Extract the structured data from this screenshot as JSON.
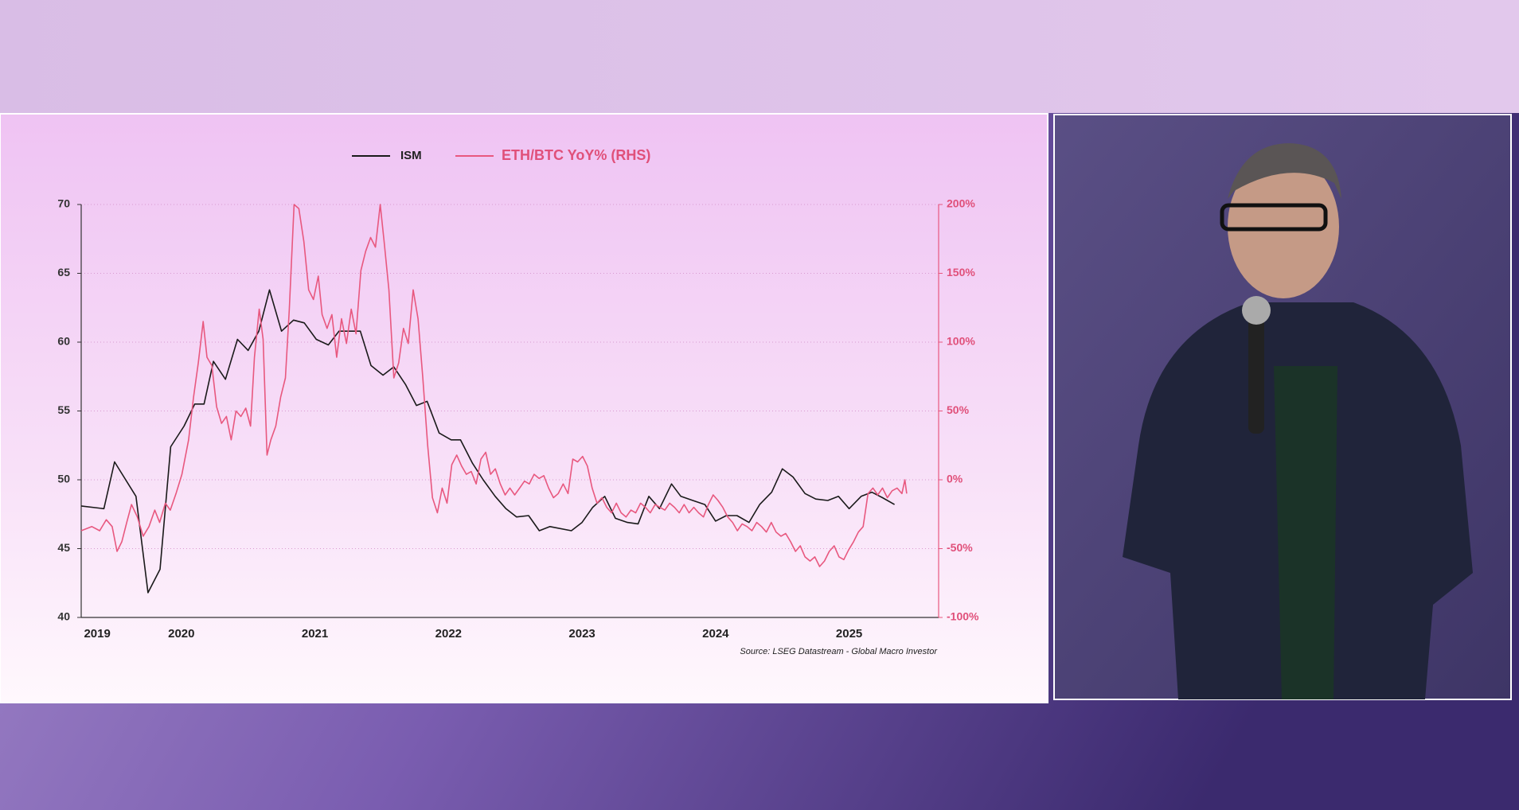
{
  "chart_data": {
    "type": "line",
    "source": "Source: LSEG Datastream - Global Macro Investor",
    "xlim": [
      2019.75,
      2026.17
    ],
    "xticks": [
      {
        "value": 2019.87,
        "label": "2019"
      },
      {
        "value": 2020.5,
        "label": "2020"
      },
      {
        "value": 2021.5,
        "label": "2021"
      },
      {
        "value": 2022.5,
        "label": "2022"
      },
      {
        "value": 2023.5,
        "label": "2023"
      },
      {
        "value": 2024.5,
        "label": "2024"
      },
      {
        "value": 2025.5,
        "label": "2025"
      }
    ],
    "ylim": [
      40,
      70
    ],
    "yticks": [
      40,
      45,
      50,
      55,
      60,
      65,
      70
    ],
    "y2lim": [
      -100,
      200
    ],
    "y2ticks": [
      {
        "value": -100,
        "label": "-100%"
      },
      {
        "value": -50,
        "label": "-50%"
      },
      {
        "value": 0,
        "label": "0%"
      },
      {
        "value": 50,
        "label": "50%"
      },
      {
        "value": 100,
        "label": "100%"
      },
      {
        "value": 150,
        "label": "150%"
      },
      {
        "value": 200,
        "label": "200%"
      }
    ],
    "grid": true,
    "series": [
      {
        "name": "ISM",
        "color": "#1a1a1a",
        "axis": "y",
        "x": [
          2019.75,
          2019.92,
          2020.0,
          2020.16,
          2020.25,
          2020.34,
          2020.42,
          2020.52,
          2020.6,
          2020.67,
          2020.74,
          2020.83,
          2020.92,
          2021.0,
          2021.08,
          2021.16,
          2021.25,
          2021.34,
          2021.42,
          2021.51,
          2021.6,
          2021.68,
          2021.84,
          2021.92,
          2022.01,
          2022.09,
          2022.18,
          2022.26,
          2022.34,
          2022.43,
          2022.52,
          2022.59,
          2022.68,
          2022.76,
          2022.85,
          2022.93,
          2023.01,
          2023.1,
          2023.18,
          2023.26,
          2023.42,
          2023.5,
          2023.58,
          2023.67,
          2023.75,
          2023.84,
          2023.92,
          2024.0,
          2024.08,
          2024.17,
          2024.24,
          2024.33,
          2024.42,
          2024.5,
          2024.58,
          2024.66,
          2024.75,
          2024.83,
          2024.92,
          2025.0,
          2025.08,
          2025.17,
          2025.25,
          2025.34,
          2025.42,
          2025.5,
          2025.59,
          2025.67,
          2025.75,
          2025.84
        ],
        "values": [
          48.1,
          47.9,
          51.3,
          48.8,
          41.8,
          43.5,
          52.4,
          53.9,
          55.5,
          55.5,
          58.6,
          57.3,
          60.2,
          59.4,
          60.8,
          63.8,
          60.8,
          61.6,
          61.4,
          60.2,
          59.8,
          60.8,
          60.8,
          58.3,
          57.6,
          58.2,
          56.9,
          55.4,
          55.7,
          53.4,
          52.9,
          52.9,
          51.2,
          50.0,
          48.8,
          47.9,
          47.3,
          47.4,
          46.3,
          46.6,
          46.3,
          46.9,
          48.0,
          48.8,
          47.2,
          46.9,
          46.8,
          48.8,
          47.9,
          49.7,
          48.8,
          48.5,
          48.2,
          47.0,
          47.4,
          47.4,
          46.9,
          48.2,
          49.1,
          50.8,
          50.2,
          49.0,
          48.6,
          48.5,
          48.8,
          47.9,
          48.8,
          49.1,
          48.7,
          48.2
        ]
      },
      {
        "name": "ETH/BTC YoY% (RHS)",
        "color": "#e8587f",
        "axis": "y2",
        "x": [
          2019.75,
          2019.83,
          2019.888,
          2019.938,
          2019.982,
          2020.018,
          2020.054,
          2020.091,
          2020.127,
          2020.17,
          2020.214,
          2020.257,
          2020.301,
          2020.337,
          2020.38,
          2020.417,
          2020.46,
          2020.504,
          2020.554,
          2020.591,
          2020.627,
          2020.663,
          2020.692,
          2020.728,
          2020.764,
          2020.801,
          2020.837,
          2020.873,
          2020.909,
          2020.946,
          2020.982,
          2021.018,
          2021.047,
          2021.083,
          2021.112,
          2021.141,
          2021.17,
          2021.207,
          2021.243,
          2021.279,
          2021.308,
          2021.344,
          2021.38,
          2021.417,
          2021.453,
          2021.489,
          2021.525,
          2021.554,
          2021.591,
          2021.627,
          2021.663,
          2021.699,
          2021.736,
          2021.772,
          2021.808,
          2021.844,
          2021.88,
          2021.917,
          2021.953,
          2021.989,
          2022.018,
          2022.054,
          2022.091,
          2022.127,
          2022.163,
          2022.199,
          2022.236,
          2022.272,
          2022.308,
          2022.344,
          2022.38,
          2022.417,
          2022.453,
          2022.489,
          2022.525,
          2022.562,
          2022.598,
          2022.634,
          2022.67,
          2022.707,
          2022.743,
          2022.779,
          2022.815,
          2022.851,
          2022.888,
          2022.924,
          2022.96,
          2022.996,
          2023.033,
          2023.069,
          2023.105,
          2023.141,
          2023.178,
          2023.214,
          2023.25,
          2023.286,
          2023.322,
          2023.359,
          2023.395,
          2023.431,
          2023.467,
          2023.504,
          2023.54,
          2023.576,
          2023.612,
          2023.649,
          2023.685,
          2023.721,
          2023.757,
          2023.793,
          2023.83,
          2023.866,
          2023.902,
          2023.938,
          2023.975,
          2024.011,
          2024.047,
          2024.083,
          2024.12,
          2024.156,
          2024.192,
          2024.228,
          2024.264,
          2024.301,
          2024.337,
          2024.373,
          2024.409,
          2024.446,
          2024.482,
          2024.518,
          2024.554,
          2024.591,
          2024.627,
          2024.663,
          2024.699,
          2024.736,
          2024.772,
          2024.808,
          2024.844,
          2024.88,
          2024.917,
          2024.953,
          2024.989,
          2025.025,
          2025.062,
          2025.098,
          2025.134,
          2025.17,
          2025.207,
          2025.243,
          2025.279,
          2025.315,
          2025.351,
          2025.388,
          2025.424,
          2025.46,
          2025.496,
          2025.533,
          2025.569,
          2025.605,
          2025.641,
          2025.678,
          2025.714,
          2025.75,
          2025.786,
          2025.822,
          2025.859,
          2025.895,
          2025.917,
          2025.931
        ],
        "values": [
          -37,
          -34,
          -37,
          -29,
          -34,
          -52,
          -45,
          -31,
          -18,
          -27,
          -41,
          -34,
          -22,
          -31,
          -17,
          -22,
          -10,
          4,
          29,
          60,
          85,
          115,
          89,
          83,
          53,
          41,
          46,
          29,
          50,
          46,
          52,
          39,
          89,
          124,
          102,
          18,
          29,
          39,
          60,
          74,
          124,
          200,
          197,
          173,
          138,
          131,
          148,
          120,
          110,
          120,
          89,
          117,
          99,
          124,
          106,
          152,
          166,
          176,
          169,
          200,
          173,
          138,
          74,
          85,
          110,
          99,
          138,
          117,
          74,
          25,
          -13,
          -24,
          -6,
          -17,
          11,
          18,
          10,
          4,
          6,
          -3,
          15,
          20,
          4,
          8,
          -3,
          -11,
          -6,
          -11,
          -6,
          -1,
          -3,
          4,
          1,
          3,
          -6,
          -13,
          -10,
          -3,
          -10,
          15,
          13,
          17,
          10,
          -6,
          -17,
          -13,
          -20,
          -24,
          -17,
          -24,
          -27,
          -22,
          -24,
          -17,
          -20,
          -24,
          -18,
          -20,
          -22,
          -17,
          -20,
          -24,
          -18,
          -24,
          -20,
          -24,
          -27,
          -18,
          -11,
          -15,
          -20,
          -27,
          -31,
          -37,
          -32,
          -34,
          -37,
          -31,
          -34,
          -38,
          -31,
          -38,
          -41,
          -39,
          -45,
          -52,
          -48,
          -56,
          -59,
          -56,
          -63,
          -59,
          -52,
          -48,
          -56,
          -58,
          -51,
          -45,
          -38,
          -34,
          -10,
          -6,
          -11,
          -6,
          -13,
          -8,
          -6,
          -10,
          0,
          -10
        ]
      }
    ]
  }
}
